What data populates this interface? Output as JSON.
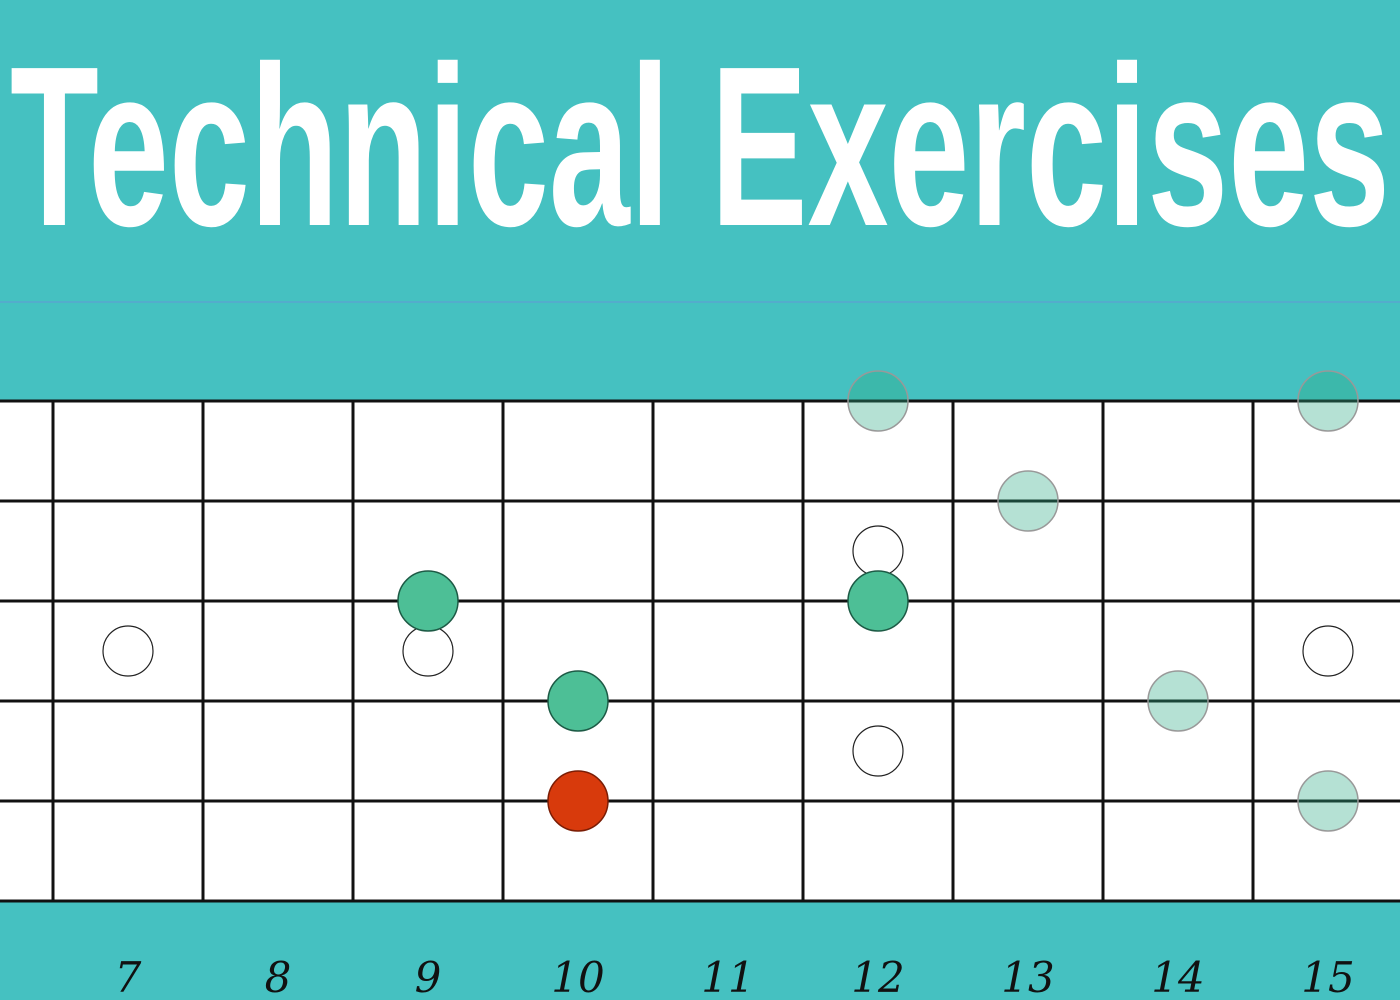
{
  "header": {
    "title": "Technical Exercises"
  },
  "fretboard": {
    "fret_numbers": [
      "7",
      "8",
      "9",
      "10",
      "11",
      "12",
      "13",
      "14",
      "15"
    ]
  }
}
